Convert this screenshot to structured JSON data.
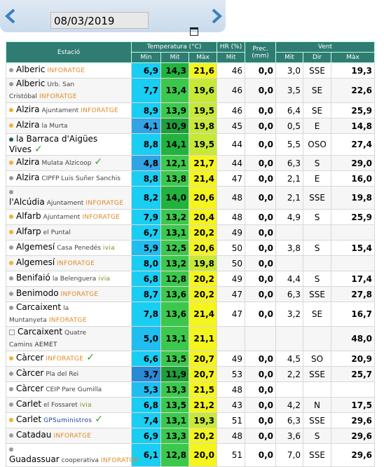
{
  "date": "08/03/2019",
  "header": {
    "station": "Estació",
    "temperature": "Temperatura (°C)",
    "hr": "HR (%)",
    "prec": "Prec. (mm)",
    "wind": "Vent",
    "sub": [
      "Min",
      "Mit",
      "Màx",
      "Mit",
      "Mit",
      "Dir",
      "Màx"
    ]
  },
  "rows": [
    {
      "dot": "grey",
      "name": "Alberic",
      "sub": null,
      "tag": "INFORATGE",
      "check": false,
      "values": [
        "6,9",
        "14,3",
        "21,6",
        "46",
        "0,0",
        "3,0",
        "SSE",
        "19,3"
      ]
    },
    {
      "dot": "grey",
      "name": "Alberic",
      "sub": "Urb. San Cristóbal",
      "tag": "INFORATGE",
      "check": false,
      "values": [
        "7,7",
        "13,4",
        "19,6",
        "46",
        "0,0",
        "3,5",
        "SE",
        "22,6"
      ]
    },
    {
      "dot": "orange",
      "name": "Alzira",
      "sub": "Ajuntament",
      "tag": "INFORATGE",
      "check": false,
      "values": [
        "8,9",
        "13,9",
        "19,5",
        "46",
        "0,0",
        "6,4",
        "SE",
        "25,9"
      ]
    },
    {
      "dot": "orange",
      "name": "Alzira",
      "sub": "la Murta",
      "tag": null,
      "check": false,
      "values": [
        "4,1",
        "10,9",
        "19,8",
        "45",
        "0,0",
        "0,5",
        "E",
        "14,8"
      ]
    },
    {
      "dot": "teal",
      "name": "la Barraca d'Aigües Vives",
      "sub": null,
      "tag": null,
      "check": true,
      "values": [
        "8,8",
        "14,1",
        "19,5",
        "44",
        "0,0",
        "5,5",
        "OSO",
        "27,4"
      ]
    },
    {
      "dot": "orange",
      "name": "Alzira",
      "sub": "Mulata Alzicoop",
      "tag": null,
      "check": true,
      "values": [
        "4,8",
        "12,1",
        "21,7",
        "44",
        "0,0",
        "6,3",
        "S",
        "29,0"
      ]
    },
    {
      "dot": "grey",
      "name": "Alzira",
      "sub": "CIPFP Luis Suñer Sanchis",
      "tag": null,
      "check": false,
      "values": [
        "8,8",
        "13,8",
        "21,4",
        "47",
        "0,0",
        "2,1",
        "E",
        "16,0"
      ]
    },
    {
      "dot": "grey",
      "name": "l'Alcúdia",
      "sub": "Ajuntament",
      "tag": "INFORATGE",
      "check": false,
      "values": [
        "8,2",
        "14,0",
        "20,6",
        "48",
        "0,0",
        "2,1",
        "SSE",
        "19,8"
      ]
    },
    {
      "dot": "orange",
      "name": "Alfarb",
      "sub": "Ajuntament",
      "tag": "INFORATGE",
      "check": false,
      "values": [
        "7,9",
        "13,2",
        "20,4",
        "48",
        "0,0",
        "4,9",
        "S",
        "25,9"
      ]
    },
    {
      "dot": "orange",
      "name": "Alfarp",
      "sub": "el Puntal",
      "tag": null,
      "check": false,
      "values": [
        "6,7",
        "13,1",
        "20,2",
        "49",
        "0,0",
        null,
        null,
        null
      ]
    },
    {
      "dot": "grey",
      "name": "Algemesí",
      "sub": "Casa Penedés",
      "tag": "ivia",
      "check": false,
      "values": [
        "5,9",
        "12,5",
        "20,6",
        "50",
        "0,0",
        "3,8",
        "S",
        "15,4"
      ]
    },
    {
      "dot": "orange",
      "name": "Algemesí",
      "sub": null,
      "tag": "INFORATGE",
      "check": false,
      "values": [
        "8,0",
        "13,2",
        "19,8",
        "50",
        "0,0",
        null,
        null,
        null
      ]
    },
    {
      "dot": "grey",
      "name": "Benifaió",
      "sub": "la Belenguera",
      "tag": "ivia",
      "check": false,
      "values": [
        "6,8",
        "12,8",
        "20,2",
        "49",
        "0,0",
        "4,4",
        "S",
        "17,4"
      ]
    },
    {
      "dot": "grey",
      "name": "Benimodo",
      "sub": null,
      "tag": "INFORATGE",
      "check": false,
      "values": [
        "8,7",
        "13,6",
        "20,2",
        "47",
        "0,0",
        "6,3",
        "SSE",
        "27,8"
      ]
    },
    {
      "dot": "grey",
      "name": "Carcaixent",
      "sub": "la Muntanyeta",
      "tag": "INFORATGE",
      "check": false,
      "values": [
        "7,8",
        "13,6",
        "21,4",
        "47",
        "0,0",
        "3,2",
        "SE",
        "16,7"
      ]
    },
    {
      "dot": "square",
      "name": "Carcaixent",
      "sub": "Quatre Camins",
      "tag": "AEMET",
      "check": false,
      "values": [
        "5,0",
        "13,1",
        "21,1",
        null,
        null,
        null,
        null,
        "48,0"
      ]
    },
    {
      "dot": "orange",
      "name": "Càrcer",
      "sub": null,
      "tag": "INFORATGE",
      "check": true,
      "values": [
        "6,6",
        "13,5",
        "20,7",
        "49",
        "0,0",
        "4,5",
        "SO",
        "20,9"
      ]
    },
    {
      "dot": "grey",
      "name": "Càrcer",
      "sub": "Pla del Rei",
      "tag": null,
      "check": false,
      "values": [
        "3,7",
        "11,9",
        "20,7",
        "53",
        "0,0",
        "2,2",
        "SSE",
        "25,7"
      ]
    },
    {
      "dot": "grey",
      "name": "Càrcer",
      "sub": "CEIP Pare Gumilla",
      "tag": null,
      "check": false,
      "values": [
        "5,3",
        "13,3",
        "21,5",
        "48",
        "0,0",
        null,
        null,
        null
      ]
    },
    {
      "dot": "grey",
      "name": "Carlet",
      "sub": "el Fossaret",
      "tag": "ivia",
      "check": false,
      "values": [
        "6,8",
        "13,5",
        "21,2",
        "43",
        "0,0",
        "4,2",
        "N",
        "17,5"
      ]
    },
    {
      "dot": "orange",
      "name": "Carlet",
      "sub": null,
      "tag": "GPSuministros",
      "check": true,
      "values": [
        "7,4",
        "13,1",
        "19,3",
        "51",
        "0,0",
        "6,3",
        "SSE",
        "29,6"
      ]
    },
    {
      "dot": "grey",
      "name": "Catadau",
      "sub": null,
      "tag": "INFORATGE",
      "check": false,
      "values": [
        "6,9",
        "13,3",
        "20,2",
        "48",
        "0,0",
        "3,6",
        "S",
        "29,6"
      ]
    },
    {
      "dot": "grey",
      "name": "Guadassuar",
      "sub": "cooperativa",
      "tag": "INFORATGE",
      "check": false,
      "values": [
        "6,1",
        "12,8",
        "20,0",
        "51",
        "0,0",
        "7,0",
        "SSE",
        "29,6"
      ]
    }
  ]
}
